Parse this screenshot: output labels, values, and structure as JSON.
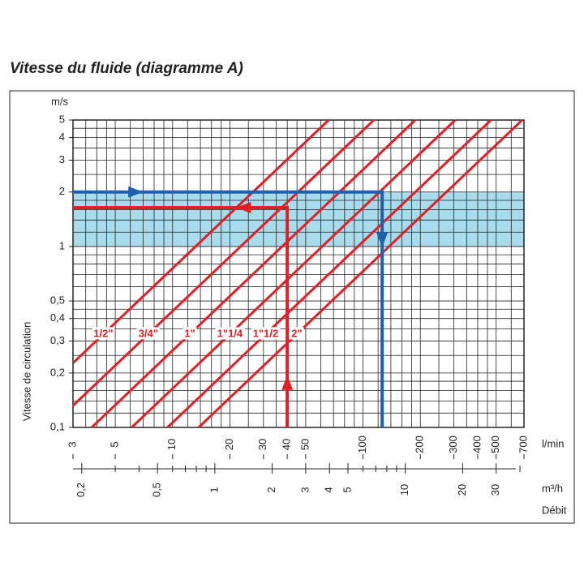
{
  "chart_data": {
    "type": "line",
    "title": "Vitesse du fluide (diagramme A)",
    "y_label": "Vitesse de circulation",
    "y_unit": "m/s",
    "x_unit": "l/min",
    "x2_unit": "m³/h",
    "x2_title": "Débit",
    "log_x": true,
    "log_y": true,
    "xlim": [
      3,
      700
    ],
    "ylim": [
      0.1,
      5
    ],
    "x2lim": [
      0.18,
      42
    ],
    "xticks": [
      3,
      5,
      10,
      20,
      30,
      40,
      50,
      100,
      200,
      300,
      400,
      500,
      700
    ],
    "yticks": [
      {
        "value": 0.1,
        "label": "0,1"
      },
      {
        "value": 0.2,
        "label": "0,2"
      },
      {
        "value": 0.3,
        "label": "0,3"
      },
      {
        "value": 0.4,
        "label": "0,4"
      },
      {
        "value": 0.5,
        "label": "0,5"
      },
      1,
      2,
      3,
      4,
      5
    ],
    "x2ticks": [
      {
        "value": 0.2,
        "label": "0,2"
      },
      {
        "value": 0.5,
        "label": "0,5"
      },
      1,
      2,
      3,
      4,
      5,
      10,
      20,
      30
    ],
    "x2minor": [
      0.3,
      0.4,
      0.6,
      0.7,
      0.8,
      0.9,
      6,
      7,
      8,
      9,
      40
    ],
    "xgrid": [
      3,
      3.5,
      4,
      4.5,
      5,
      6,
      7,
      8,
      9,
      10,
      12,
      14,
      16,
      18,
      20,
      25,
      30,
      35,
      40,
      45,
      50,
      60,
      70,
      80,
      90,
      100,
      120,
      140,
      160,
      180,
      200,
      250,
      300,
      350,
      400,
      450,
      500,
      600,
      700
    ],
    "ygrid": [
      0.1,
      0.12,
      0.14,
      0.16,
      0.18,
      0.2,
      0.25,
      0.3,
      0.35,
      0.4,
      0.45,
      0.5,
      0.6,
      0.7,
      0.8,
      0.9,
      1,
      1.2,
      1.4,
      1.6,
      1.8,
      2,
      2.5,
      3,
      3.5,
      4,
      4.5,
      5
    ],
    "band": {
      "range": [
        1,
        2
      ],
      "color": "#a8dced"
    },
    "series": [
      {
        "name": "1/2\"",
        "color": "#e31e24",
        "x": [
          3,
          66
        ],
        "values": [
          0.227,
          5
        ]
      },
      {
        "name": "3/4\"",
        "color": "#e31e24",
        "x": [
          3,
          114
        ],
        "values": [
          0.132,
          5
        ]
      },
      {
        "name": "1\"",
        "color": "#e31e24",
        "x": [
          3.76,
          188
        ],
        "values": [
          0.1,
          5
        ]
      },
      {
        "name": "1\"1/4",
        "color": "#e31e24",
        "x": [
          6.1,
          305
        ],
        "values": [
          0.1,
          5
        ]
      },
      {
        "name": "1\"1/2",
        "color": "#e31e24",
        "x": [
          9.4,
          470
        ],
        "values": [
          0.1,
          5
        ]
      },
      {
        "name": "2\"",
        "color": "#e31e24",
        "x": [
          13.7,
          685
        ],
        "values": [
          0.1,
          5
        ]
      }
    ],
    "examples": [
      {
        "color": "#1f5fb0",
        "x": [
          3,
          126,
          126
        ],
        "values": [
          2,
          2,
          0.1
        ]
      },
      {
        "color": "#e31e24",
        "x": [
          40,
          40,
          3
        ],
        "values": [
          0.1,
          1.64,
          1.64
        ]
      }
    ]
  }
}
